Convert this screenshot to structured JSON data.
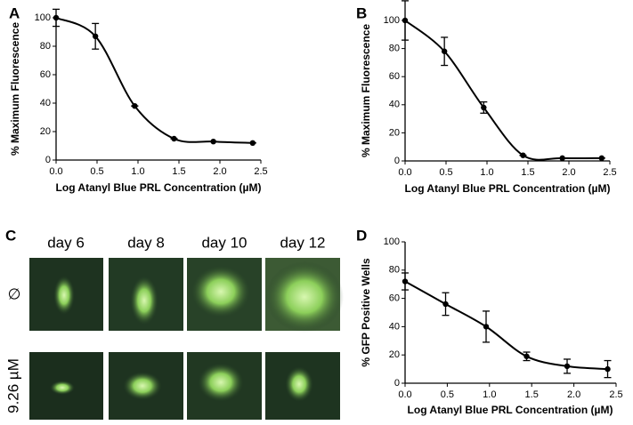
{
  "panels": [
    "A",
    "B",
    "C",
    "D"
  ],
  "image_grid": {
    "columns": [
      "day 6",
      "day 8",
      "day 10",
      "day 12"
    ],
    "rows": [
      "∅",
      "9.26 µM"
    ]
  },
  "chart_data": [
    {
      "type": "scatter",
      "xlabel": "Log Atanyl Blue PRL Concentration (µM)",
      "ylabel": "% Maximum Fluorescence",
      "x": [
        0,
        0.48,
        0.96,
        1.44,
        1.92,
        2.4
      ],
      "values": [
        100,
        87,
        38,
        15,
        13,
        12
      ],
      "errors": [
        6,
        9,
        0,
        0,
        0,
        0
      ],
      "color": "#000000",
      "xlim": [
        0,
        2.5
      ],
      "ylim": [
        0,
        100
      ],
      "xticks": [
        {
          "value": 0,
          "label": "0.0"
        },
        0.5,
        {
          "value": 1,
          "label": "1.0"
        },
        1.5,
        {
          "value": 2,
          "label": "2.0"
        },
        2.5
      ],
      "yticks": [
        0,
        20,
        40,
        60,
        80,
        100
      ]
    },
    {
      "type": "scatter",
      "xlabel": "Log Atanyl Blue PRL Concentration (µM)",
      "ylabel": "% Maximum Fluorescence",
      "x": [
        0,
        0.48,
        0.96,
        1.44,
        1.92,
        2.4
      ],
      "values": [
        100,
        78,
        38,
        4,
        2,
        2
      ],
      "errors": [
        14,
        10,
        4,
        0,
        0,
        0
      ],
      "color": "#000000",
      "xlim": [
        0,
        2.5
      ],
      "ylim": [
        0,
        100
      ],
      "xticks": [
        {
          "value": 0,
          "label": "0.0"
        },
        0.5,
        {
          "value": 1,
          "label": "1.0"
        },
        1.5,
        {
          "value": 2,
          "label": "2.0"
        },
        2.5
      ],
      "yticks": [
        0,
        20,
        40,
        60,
        80,
        100
      ]
    },
    {
      "type": "scatter",
      "xlabel": "Log Atanyl Blue PRL Concentration (µM)",
      "ylabel": "% GFP Positive Wells",
      "x": [
        0,
        0.48,
        0.96,
        1.44,
        1.92,
        2.4
      ],
      "values": [
        72,
        56,
        40,
        19,
        12,
        10
      ],
      "errors": [
        6,
        8,
        11,
        3,
        5,
        6
      ],
      "color": "#000000",
      "xlim": [
        0,
        2.5
      ],
      "ylim": [
        0,
        100
      ],
      "xticks": [
        {
          "value": 0,
          "label": "0.0"
        },
        0.5,
        {
          "value": 1,
          "label": "1.0"
        },
        1.5,
        {
          "value": 2,
          "label": "2.0"
        },
        2.5
      ],
      "yticks": [
        0,
        20,
        40,
        60,
        80,
        100
      ]
    }
  ]
}
